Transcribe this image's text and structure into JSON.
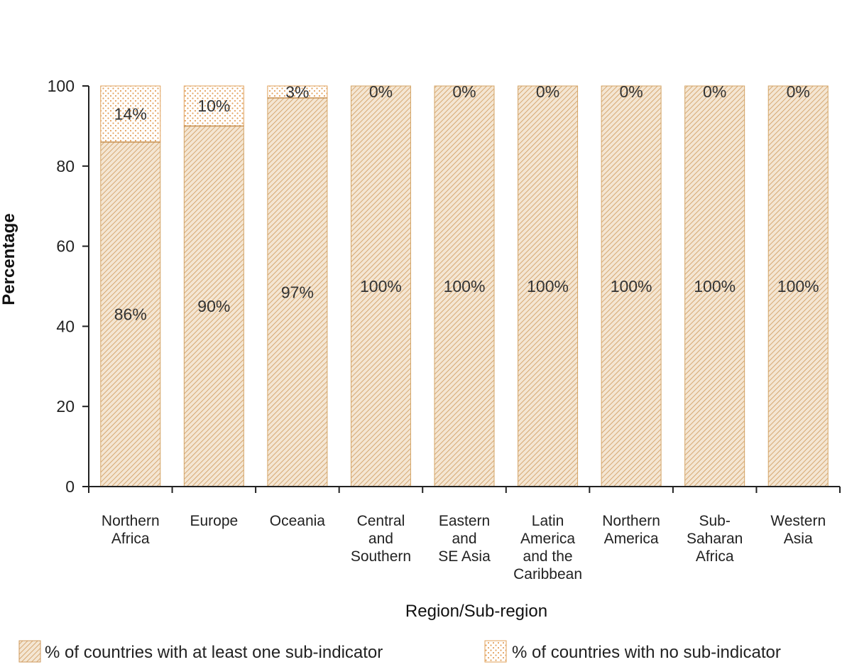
{
  "chart_data": {
    "type": "bar",
    "stacked": true,
    "xlabel": "Region/Sub-region",
    "ylabel": "Percentage",
    "ylim": [
      0,
      100
    ],
    "yticks": [
      0,
      20,
      40,
      60,
      80,
      100
    ],
    "categories": [
      [
        "Northern",
        "Africa"
      ],
      [
        "Europe"
      ],
      [
        "Oceania"
      ],
      [
        "Central",
        "and",
        "Southern"
      ],
      [
        "Eastern",
        "and",
        "SE Asia"
      ],
      [
        "Latin",
        "America",
        "and the",
        "Caribbean"
      ],
      [
        "Northern",
        "America"
      ],
      [
        "Sub-",
        "Saharan",
        "Africa"
      ],
      [
        "Western",
        "Asia"
      ]
    ],
    "series": [
      {
        "name": "% of countries with at least one sub-indicator",
        "values": [
          86,
          90,
          97,
          100,
          100,
          100,
          100,
          100,
          100
        ],
        "labels": [
          "86%",
          "90%",
          "97%",
          "100%",
          "100%",
          "100%",
          "100%",
          "100%",
          "100%"
        ],
        "pattern": "hatch",
        "color": "#d4a466"
      },
      {
        "name": "% of countries with no sub-indicator",
        "values": [
          14,
          10,
          3,
          0,
          0,
          0,
          0,
          0,
          0
        ],
        "labels": [
          "14%",
          "10%",
          "3%",
          "0%",
          "0%",
          "0%",
          "0%",
          "0%",
          "0%"
        ],
        "pattern": "dots",
        "color": "#e0a15a"
      }
    ],
    "grid": false,
    "legend_position": "bottom"
  }
}
